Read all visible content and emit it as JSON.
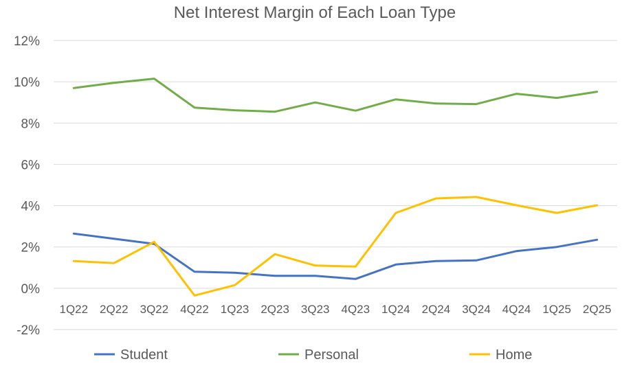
{
  "chart_data": {
    "type": "line",
    "title": "Net Interest Margin of Each Loan Type",
    "xlabel": "",
    "ylabel": "",
    "categories": [
      "1Q22",
      "2Q22",
      "3Q22",
      "4Q22",
      "1Q23",
      "2Q23",
      "3Q23",
      "4Q23",
      "1Q24",
      "2Q24",
      "3Q24",
      "4Q24",
      "1Q25",
      "2Q25"
    ],
    "ylim": [
      -2,
      12
    ],
    "yticks": [
      -2,
      0,
      2,
      4,
      6,
      8,
      10,
      12
    ],
    "ytick_labels": [
      "-2%",
      "0%",
      "2%",
      "4%",
      "6%",
      "8%",
      "10%",
      "12%"
    ],
    "grid": true,
    "legend_position": "bottom",
    "series": [
      {
        "name": "Student",
        "color": "#4472C4",
        "values": [
          2.65,
          2.4,
          2.15,
          0.8,
          0.75,
          0.6,
          0.6,
          0.45,
          1.15,
          1.32,
          1.35,
          1.8,
          2.0,
          2.35
        ]
      },
      {
        "name": "Personal",
        "color": "#70AD47",
        "values": [
          9.7,
          9.95,
          10.15,
          8.75,
          8.62,
          8.55,
          9.0,
          8.6,
          9.15,
          8.95,
          8.92,
          9.42,
          9.22,
          9.52
        ]
      },
      {
        "name": "Home",
        "color": "#FFC000",
        "values": [
          1.32,
          1.22,
          2.25,
          -0.35,
          0.15,
          1.65,
          1.1,
          1.05,
          3.65,
          4.35,
          4.42,
          4.02,
          3.65,
          4.02
        ]
      }
    ]
  }
}
